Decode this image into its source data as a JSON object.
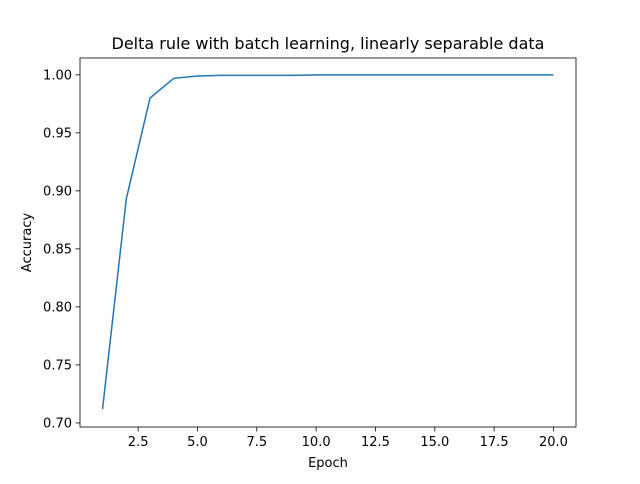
{
  "chart_data": {
    "type": "line",
    "title": "Delta rule with batch learning, linearly separable data",
    "xlabel": "Epoch",
    "ylabel": "Accuracy",
    "xlim": [
      0.05,
      20.95
    ],
    "ylim": [
      0.6965,
      1.0145
    ],
    "xticks": [
      2.5,
      5.0,
      7.5,
      10.0,
      12.5,
      15.0,
      17.5,
      20.0
    ],
    "xtick_labels": [
      "2.5",
      "5.0",
      "7.5",
      "10.0",
      "12.5",
      "15.0",
      "17.5",
      "20.0"
    ],
    "yticks": [
      0.7,
      0.75,
      0.8,
      0.85,
      0.9,
      0.95,
      1.0
    ],
    "ytick_labels": [
      "0.70",
      "0.75",
      "0.80",
      "0.85",
      "0.90",
      "0.95",
      "1.00"
    ],
    "grid": false,
    "legend": null,
    "line_color": "#1f77b4",
    "series": [
      {
        "x": [
          1,
          2,
          3,
          4,
          5,
          6,
          7,
          8,
          9,
          10,
          11,
          12,
          13,
          14,
          15,
          16,
          17,
          18,
          19,
          20
        ],
        "y": [
          0.712,
          0.893,
          0.98,
          0.997,
          0.999,
          0.9995,
          0.9995,
          0.9995,
          0.9995,
          1.0,
          1.0,
          1.0,
          1.0,
          1.0,
          1.0,
          1.0,
          1.0,
          1.0,
          1.0,
          1.0
        ]
      }
    ]
  }
}
